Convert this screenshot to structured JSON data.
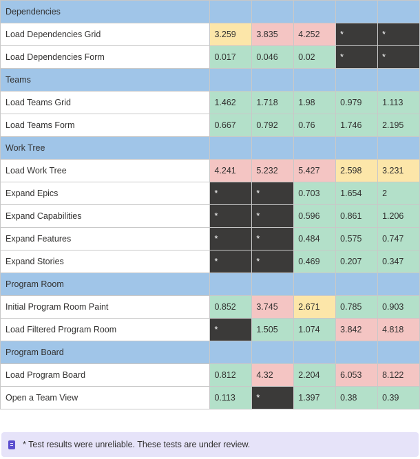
{
  "colors": {
    "section": "#a0c5e8",
    "good": "#b3e0c9",
    "bad": "#f4c5c3",
    "warn": "#fce6a9",
    "unreliable": "#3b3a39",
    "note_bg": "#e6e3f9"
  },
  "rows": [
    {
      "type": "section",
      "label": "Dependencies"
    },
    {
      "type": "data",
      "label": "Load Dependencies Grid",
      "cells": [
        {
          "v": "3.259",
          "c": "yellow"
        },
        {
          "v": "3.835",
          "c": "red"
        },
        {
          "v": "4.252",
          "c": "red"
        },
        {
          "v": "*",
          "c": "dark"
        },
        {
          "v": "*",
          "c": "dark"
        }
      ]
    },
    {
      "type": "data",
      "label": "Load Dependencies Form",
      "cells": [
        {
          "v": "0.017",
          "c": "green"
        },
        {
          "v": "0.046",
          "c": "green"
        },
        {
          "v": "0.02",
          "c": "green"
        },
        {
          "v": "*",
          "c": "dark"
        },
        {
          "v": "*",
          "c": "dark"
        }
      ]
    },
    {
      "type": "section",
      "label": "Teams"
    },
    {
      "type": "data",
      "label": "Load Teams Grid",
      "cells": [
        {
          "v": "1.462",
          "c": "green"
        },
        {
          "v": "1.718",
          "c": "green"
        },
        {
          "v": "1.98",
          "c": "green"
        },
        {
          "v": "0.979",
          "c": "green"
        },
        {
          "v": "1.113",
          "c": "green"
        }
      ]
    },
    {
      "type": "data",
      "label": "Load Teams Form",
      "cells": [
        {
          "v": "0.667",
          "c": "green"
        },
        {
          "v": "0.792",
          "c": "green"
        },
        {
          "v": "0.76",
          "c": "green"
        },
        {
          "v": "1.746",
          "c": "green"
        },
        {
          "v": "2.195",
          "c": "green"
        }
      ]
    },
    {
      "type": "section",
      "label": "Work Tree"
    },
    {
      "type": "data",
      "label": "Load Work Tree",
      "cells": [
        {
          "v": "4.241",
          "c": "red"
        },
        {
          "v": "5.232",
          "c": "red"
        },
        {
          "v": "5.427",
          "c": "red"
        },
        {
          "v": "2.598",
          "c": "yellow"
        },
        {
          "v": "3.231",
          "c": "yellow"
        }
      ]
    },
    {
      "type": "data",
      "label": "Expand Epics",
      "cells": [
        {
          "v": "*",
          "c": "dark"
        },
        {
          "v": "*",
          "c": "dark"
        },
        {
          "v": "0.703",
          "c": "green"
        },
        {
          "v": "1.654",
          "c": "green"
        },
        {
          "v": "2",
          "c": "green"
        }
      ]
    },
    {
      "type": "data",
      "label": "Expand Capabilities",
      "cells": [
        {
          "v": "*",
          "c": "dark"
        },
        {
          "v": "*",
          "c": "dark"
        },
        {
          "v": "0.596",
          "c": "green"
        },
        {
          "v": "0.861",
          "c": "green"
        },
        {
          "v": "1.206",
          "c": "green"
        }
      ]
    },
    {
      "type": "data",
      "label": "Expand Features",
      "cells": [
        {
          "v": "*",
          "c": "dark"
        },
        {
          "v": "*",
          "c": "dark"
        },
        {
          "v": "0.484",
          "c": "green"
        },
        {
          "v": "0.575",
          "c": "green"
        },
        {
          "v": "0.747",
          "c": "green"
        }
      ]
    },
    {
      "type": "data",
      "label": "Expand Stories",
      "cells": [
        {
          "v": "*",
          "c": "dark"
        },
        {
          "v": "*",
          "c": "dark"
        },
        {
          "v": "0.469",
          "c": "green"
        },
        {
          "v": "0.207",
          "c": "green"
        },
        {
          "v": "0.347",
          "c": "green"
        }
      ]
    },
    {
      "type": "section",
      "label": "Program Room"
    },
    {
      "type": "data",
      "label": "Initial Program Room Paint",
      "cells": [
        {
          "v": "0.852",
          "c": "green"
        },
        {
          "v": "3.745",
          "c": "red"
        },
        {
          "v": "2.671",
          "c": "yellow"
        },
        {
          "v": "0.785",
          "c": "green"
        },
        {
          "v": "0.903",
          "c": "green"
        }
      ]
    },
    {
      "type": "data",
      "label": "Load Filtered Program Room",
      "cells": [
        {
          "v": "*",
          "c": "dark"
        },
        {
          "v": "1.505",
          "c": "green"
        },
        {
          "v": "1.074",
          "c": "green"
        },
        {
          "v": "3.842",
          "c": "red"
        },
        {
          "v": "4.818",
          "c": "red"
        }
      ]
    },
    {
      "type": "section",
      "label": "Program Board"
    },
    {
      "type": "data",
      "label": "Load Program Board",
      "cells": [
        {
          "v": "0.812",
          "c": "green"
        },
        {
          "v": "4.32",
          "c": "red"
        },
        {
          "v": "2.204",
          "c": "green"
        },
        {
          "v": "6.053",
          "c": "red"
        },
        {
          "v": "8.122",
          "c": "red"
        }
      ]
    },
    {
      "type": "data",
      "label": "Open a Team View",
      "cells": [
        {
          "v": "0.113",
          "c": "green"
        },
        {
          "v": "*",
          "c": "dark"
        },
        {
          "v": "1.397",
          "c": "green"
        },
        {
          "v": "0.38",
          "c": "green"
        },
        {
          "v": "0.39",
          "c": "green"
        }
      ]
    }
  ],
  "note": {
    "icon": "note-icon",
    "text": "* Test results were unreliable. These tests are under review."
  }
}
